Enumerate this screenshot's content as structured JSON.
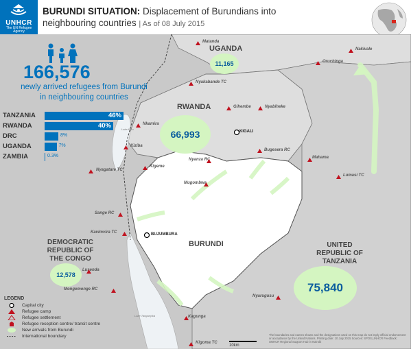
{
  "header": {
    "org_name": "UNHCR",
    "org_tagline": "The UN Refugee Agency",
    "title_bold": "BURUNDI SITUATION:",
    "title_rest": " Displacement of Burundians into",
    "title_line2": "neighbouring countries",
    "date": "|  As of 08 July 2015"
  },
  "summary": {
    "total": "166,576",
    "subtitle_1": "newly arrived refugees from Burundi",
    "subtitle_2": "in neighbouring countries"
  },
  "chart_data": {
    "type": "bar",
    "categories": [
      "TANZANIA",
      "RWANDA",
      "DRC",
      "UGANDA",
      "ZAMBIA"
    ],
    "values": [
      46,
      40,
      8,
      7,
      0.3
    ],
    "labels": [
      "46%",
      "40%",
      "8%",
      "7%",
      "0.3%"
    ]
  },
  "countries": {
    "uganda": "UGANDA",
    "rwanda": "RWANDA",
    "burundi": "BURUNDI",
    "drc": "DEMOCRATIC\nREPUBLIC OF\nTHE CONGO",
    "tanzania": "UNITED\nREPUBLIC OF\nTANZANIA"
  },
  "arrivals": {
    "uganda": "11,165",
    "rwanda": "66,993",
    "drc": "12,578",
    "tanzania": "75,840"
  },
  "places": {
    "kigali": "KIGALI",
    "bujumbura": "BUJUMBURA",
    "nakivale": "Nakivale",
    "oruchinga": "Oruchinga",
    "nyakabande": "Nyakabande TC",
    "matanda": "Matanda",
    "gihembe": "Gihembe",
    "nyabiheke": "Nyabiheke",
    "nkamira": "Nkamira",
    "kiziba": "Kiziba",
    "bugesera": "Bugesera RC",
    "nyagatare": "Nyagatare TC",
    "kigeme": "Kigeme",
    "nyanza": "Nyanza RC",
    "mahama": "Mahama",
    "mugombwa": "Mugombwa",
    "lumasi": "Lumasi TC",
    "sange": "Sange RC",
    "kavimvira": "Kavimvira TC",
    "lusenda": "Lusenda",
    "mongemonge": "Mongemonge RC",
    "nyarugusu": "Nyarugusu",
    "kagunga": "Kagunga",
    "kigoma": "Kigoma TC",
    "lake_kivu": "Lake Kivu",
    "lake_tanganyika": "Lake Tanganyika"
  },
  "legend": {
    "title": "LEGEND",
    "items": [
      "Capital city",
      "Refugee camp",
      "Refugee settlement",
      "Refugee reception centre/ transit centre",
      "New arrivals from Burundi",
      "International boundary"
    ]
  },
  "footer": {
    "disclaimer": "The boundaries and names shown and the designations used on this map do not imply official endorsement or acceptance by the United Nations. Printing date: 10 July 2015  Sources: SPOS,UNHCR  Feedback: UNHCR Regional Support Hub in Nairobi",
    "scale": "10km"
  },
  "colors": {
    "unhcr_blue": "#0072bc",
    "arrivals_green": "#d4f5c1",
    "camp_red": "#c0121f"
  }
}
